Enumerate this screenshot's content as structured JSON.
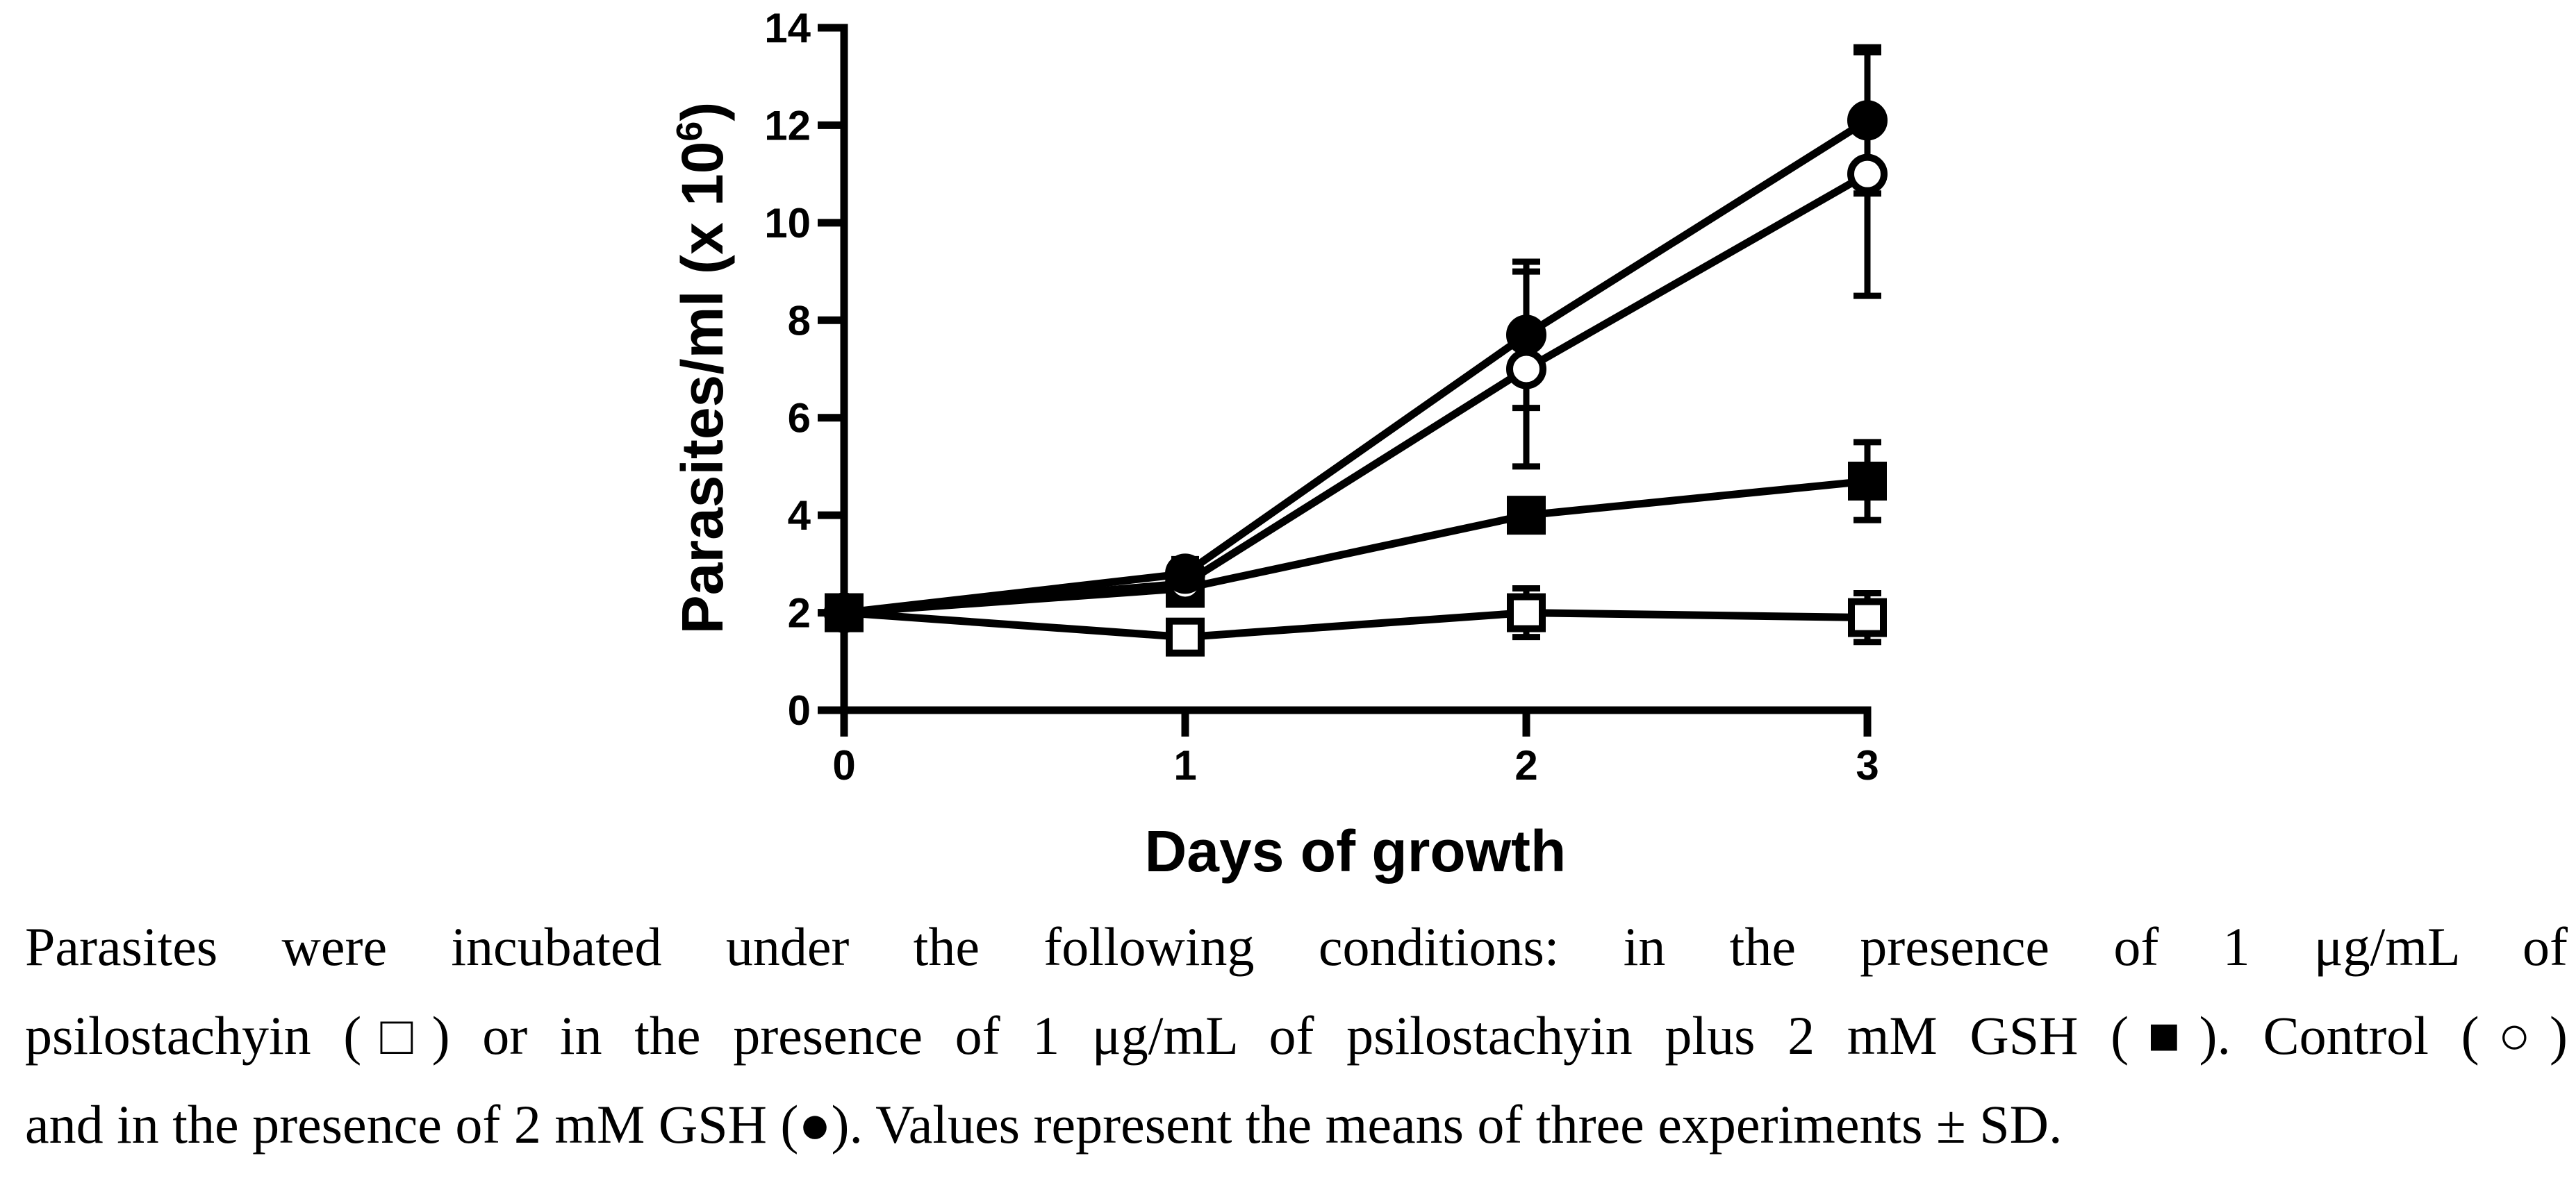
{
  "chart_data": {
    "type": "line",
    "title": "",
    "xlabel": "Days of growth",
    "ylabel_main": "Parasites/ml (x 10",
    "ylabel_sup": "6",
    "ylabel_close": ")",
    "x": [
      0,
      1,
      2,
      3
    ],
    "xticks": [
      "0",
      "1",
      "2",
      "3"
    ],
    "yticks": [
      "0",
      "2",
      "4",
      "6",
      "8",
      "10",
      "12",
      "14"
    ],
    "xlim": [
      0,
      3
    ],
    "ylim": [
      0,
      14
    ],
    "grid": false,
    "series": [
      {
        "name": "Control",
        "marker": "open-circle",
        "values": [
          2.0,
          2.6,
          7.0,
          11.0
        ],
        "sd": [
          0.15,
          0.3,
          2.0,
          2.5
        ]
      },
      {
        "name": "2 mM GSH",
        "marker": "filled-circle",
        "values": [
          2.0,
          2.8,
          7.7,
          12.1
        ],
        "sd": [
          0.15,
          0.3,
          1.5,
          1.5
        ]
      },
      {
        "name": "psilostachyin 1 µg/mL",
        "marker": "open-square",
        "values": [
          2.0,
          1.5,
          2.0,
          1.9
        ],
        "sd": [
          0.1,
          0.15,
          0.5,
          0.5
        ]
      },
      {
        "name": "psilostachyin 1 µg/mL + 2 mM GSH",
        "marker": "filled-square",
        "values": [
          2.0,
          2.5,
          4.0,
          4.7
        ],
        "sd": [
          0.1,
          0.2,
          0.2,
          0.8
        ]
      }
    ]
  },
  "caption": {
    "line1": "Parasites were incubated under the following conditions: in the presence of 1 μg/mL of",
    "line2": "psilostachyin (□) or in the presence of 1 μg/mL of psilostachyin plus 2 mM GSH (■). Control (○)",
    "line3": "and in the presence of 2 mM GSH (●). Values represent the means of three experiments ± SD."
  }
}
